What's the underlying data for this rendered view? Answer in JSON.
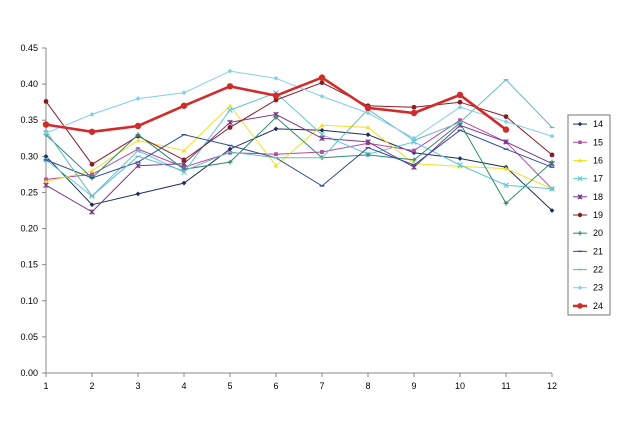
{
  "chart_data": {
    "type": "line",
    "title": "",
    "xlabel": "",
    "ylabel": "",
    "x": [
      1,
      2,
      3,
      4,
      5,
      6,
      7,
      8,
      9,
      10,
      11,
      12
    ],
    "ylim": [
      0,
      0.45
    ],
    "yticks": [
      "0.00",
      "0.05",
      "0.10",
      "0.15",
      "0.20",
      "0.25",
      "0.30",
      "0.35",
      "0.40",
      "0.45"
    ],
    "xticks": [
      "1",
      "2",
      "3",
      "4",
      "5",
      "6",
      "7",
      "8",
      "9",
      "10",
      "11",
      "12"
    ],
    "grid": false,
    "legend_position": "right",
    "series": [
      {
        "name": "14",
        "color": "#1f2f5e",
        "marker": "diamond",
        "values": [
          0.3,
          0.233,
          0.248,
          0.263,
          0.31,
          0.338,
          0.336,
          0.33,
          0.305,
          0.297,
          0.285,
          0.225
        ]
      },
      {
        "name": "15",
        "color": "#b04aa8",
        "marker": "square",
        "values": [
          0.268,
          0.275,
          0.31,
          0.285,
          0.305,
          0.303,
          0.306,
          0.318,
          0.308,
          0.35,
          0.32,
          0.255
        ]
      },
      {
        "name": "16",
        "color": "#f2e020",
        "marker": "triangle",
        "values": [
          0.265,
          0.28,
          0.322,
          0.308,
          0.37,
          0.287,
          0.343,
          0.34,
          0.29,
          0.286,
          0.283,
          0.255
        ]
      },
      {
        "name": "17",
        "color": "#5cc8dc",
        "marker": "x",
        "values": [
          0.295,
          0.245,
          0.308,
          0.278,
          0.364,
          0.388,
          0.33,
          0.303,
          0.32,
          0.288,
          0.26,
          0.255
        ]
      },
      {
        "name": "18",
        "color": "#7a3a8c",
        "marker": "star",
        "values": [
          0.26,
          0.223,
          0.287,
          0.29,
          0.347,
          0.358,
          0.325,
          0.32,
          0.285,
          0.343,
          0.32,
          0.29
        ]
      },
      {
        "name": "19",
        "color": "#8b1c22",
        "marker": "circle",
        "values": [
          0.376,
          0.289,
          0.328,
          0.295,
          0.34,
          0.378,
          0.402,
          0.37,
          0.368,
          0.375,
          0.355,
          0.302
        ]
      },
      {
        "name": "20",
        "color": "#2e8b6e",
        "marker": "plus",
        "values": [
          0.33,
          0.27,
          0.33,
          0.282,
          0.292,
          0.354,
          0.298,
          0.302,
          0.295,
          0.346,
          0.235,
          0.292
        ]
      },
      {
        "name": "21",
        "color": "#2f4f9a",
        "marker": "dash",
        "values": [
          0.295,
          0.27,
          0.292,
          0.33,
          0.315,
          0.298,
          0.259,
          0.312,
          0.288,
          0.336,
          0.31,
          0.285
        ]
      },
      {
        "name": "22",
        "color": "#6ab8c8",
        "marker": "dash",
        "values": [
          0.335,
          0.245,
          0.3,
          0.28,
          0.306,
          0.298,
          0.298,
          0.365,
          0.322,
          0.347,
          0.406,
          0.34
        ]
      },
      {
        "name": "23",
        "color": "#7fd0e8",
        "marker": "diamond",
        "values": [
          0.332,
          0.358,
          0.38,
          0.388,
          0.418,
          0.408,
          0.383,
          0.36,
          0.325,
          0.368,
          0.348,
          0.328
        ]
      },
      {
        "name": "24",
        "color": "#d42a2a",
        "marker": "circle",
        "values": [
          0.344,
          0.334,
          0.342,
          0.37,
          0.397,
          0.384,
          0.409,
          0.367,
          0.36,
          0.385,
          0.337,
          null
        ]
      }
    ]
  }
}
